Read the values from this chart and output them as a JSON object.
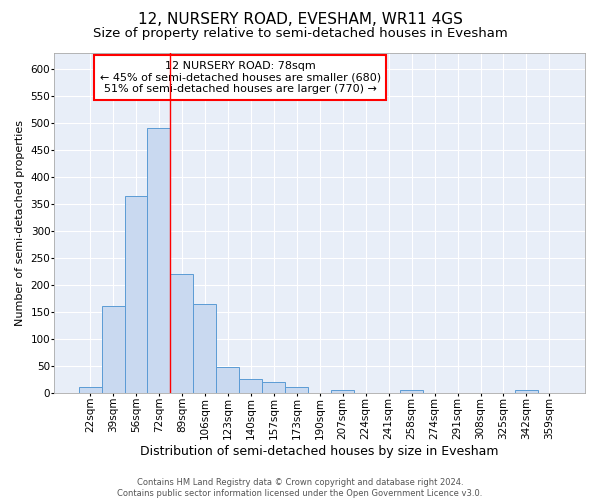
{
  "title": "12, NURSERY ROAD, EVESHAM, WR11 4GS",
  "subtitle": "Size of property relative to semi-detached houses in Evesham",
  "xlabel": "Distribution of semi-detached houses by size in Evesham",
  "ylabel": "Number of semi-detached properties",
  "categories": [
    "22sqm",
    "39sqm",
    "56sqm",
    "72sqm",
    "89sqm",
    "106sqm",
    "123sqm",
    "140sqm",
    "157sqm",
    "173sqm",
    "190sqm",
    "207sqm",
    "224sqm",
    "241sqm",
    "258sqm",
    "274sqm",
    "291sqm",
    "308sqm",
    "325sqm",
    "342sqm",
    "359sqm"
  ],
  "bar_values": [
    10,
    160,
    365,
    490,
    220,
    165,
    48,
    25,
    20,
    10,
    0,
    5,
    0,
    0,
    5,
    0,
    0,
    0,
    0,
    5,
    0
  ],
  "bar_color": "#c9d9f0",
  "bar_edge_color": "#5b9bd5",
  "red_line_x": 3.5,
  "annotation_line1": "12 NURSERY ROAD: 78sqm",
  "annotation_line2": "← 45% of semi-detached houses are smaller (680)",
  "annotation_line3": "51% of semi-detached houses are larger (770) →",
  "annotation_box_color": "white",
  "annotation_box_edge": "red",
  "ylim": [
    0,
    630
  ],
  "yticks": [
    0,
    50,
    100,
    150,
    200,
    250,
    300,
    350,
    400,
    450,
    500,
    550,
    600
  ],
  "background_color": "#e8eef8",
  "footer_line1": "Contains HM Land Registry data © Crown copyright and database right 2024.",
  "footer_line2": "Contains public sector information licensed under the Open Government Licence v3.0.",
  "title_fontsize": 11,
  "subtitle_fontsize": 9.5,
  "xlabel_fontsize": 9,
  "ylabel_fontsize": 8,
  "tick_fontsize": 7.5,
  "annotation_fontsize": 8,
  "footer_fontsize": 6
}
